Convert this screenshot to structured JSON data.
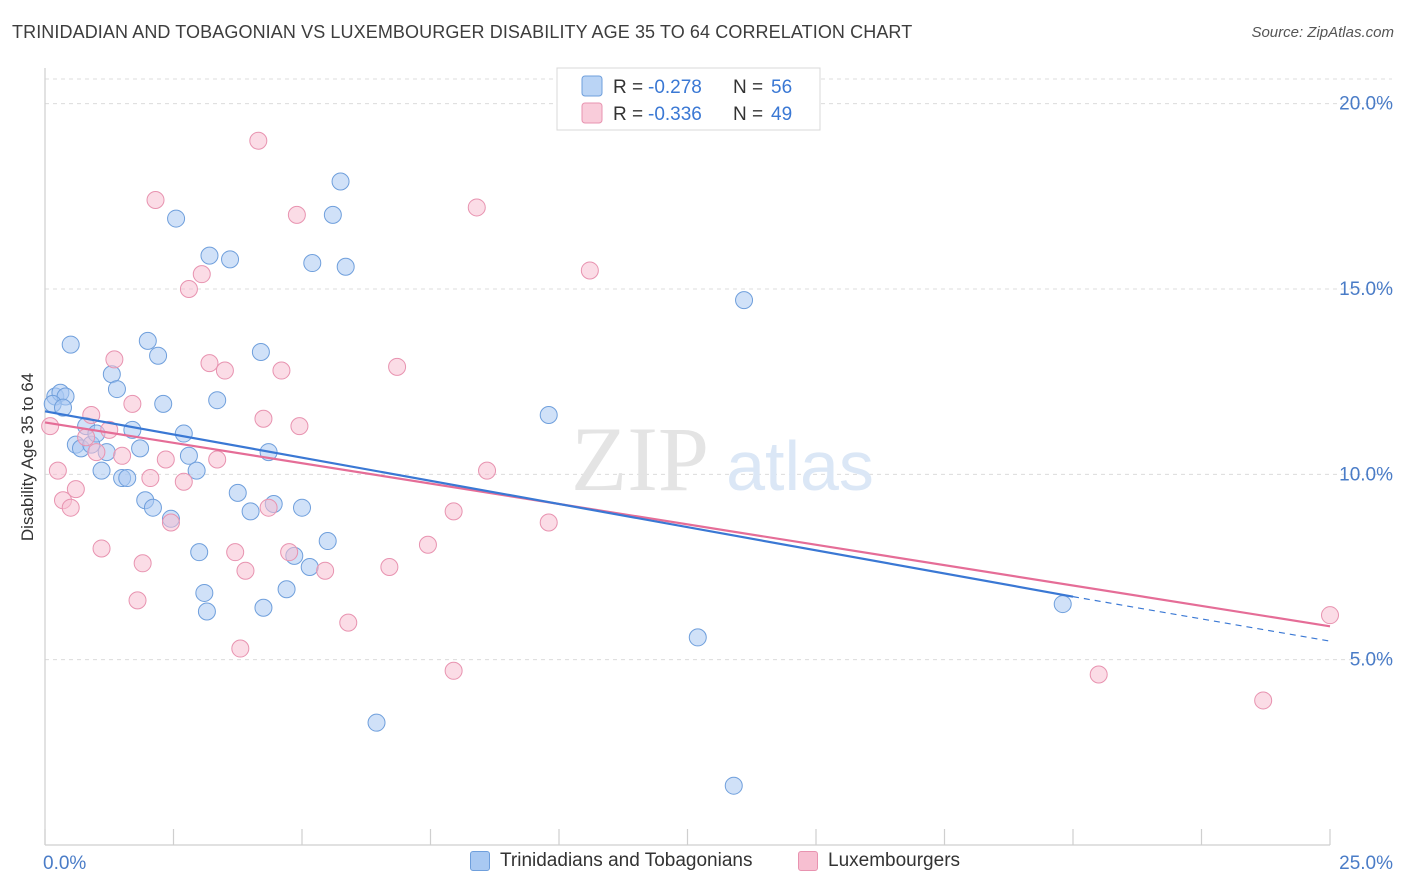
{
  "title": "TRINIDADIAN AND TOBAGONIAN VS LUXEMBOURGER DISABILITY AGE 35 TO 64 CORRELATION CHART",
  "source": "Source: ZipAtlas.com",
  "colors": {
    "blue_fill": "#a9c9f2",
    "blue_stroke": "#6f9fdc",
    "blue_line": "#3a78d4",
    "pink_fill": "#f7bfd1",
    "pink_stroke": "#e893b0",
    "pink_line": "#e56d97",
    "tick_label": "#4a7cc7"
  },
  "chart_data": {
    "type": "scatter",
    "ylabel": "Disability Age 35 to 64",
    "xlim": [
      0,
      25
    ],
    "ylim": [
      0,
      20.8
    ],
    "x_tick_labels": [
      {
        "value": 0,
        "label": "0.0%"
      },
      {
        "value": 25,
        "label": "25.0%"
      }
    ],
    "y_tick_labels": [
      {
        "value": 5,
        "label": "5.0%"
      },
      {
        "value": 10,
        "label": "10.0%"
      },
      {
        "value": 15,
        "label": "15.0%"
      },
      {
        "value": 20,
        "label": "20.0%"
      }
    ],
    "grid": true,
    "watermark": {
      "zip": "ZIP",
      "atlas": "atlas"
    },
    "legend": {
      "placement": "top-center",
      "entries": [
        {
          "r_label": "R =",
          "r_value": "-0.278",
          "n_label": "N =",
          "n_value": "56"
        },
        {
          "r_label": "R =",
          "r_value": "-0.336",
          "n_label": "N =",
          "n_value": "49"
        }
      ]
    },
    "series": [
      {
        "name": "Trinidadians and Tobagonians",
        "points": [
          [
            0.2,
            12.1
          ],
          [
            0.3,
            12.2
          ],
          [
            0.4,
            12.1
          ],
          [
            0.5,
            13.5
          ],
          [
            0.6,
            10.8
          ],
          [
            0.7,
            10.7
          ],
          [
            0.8,
            11.3
          ],
          [
            0.9,
            10.8
          ],
          [
            1.0,
            11.1
          ],
          [
            1.1,
            10.1
          ],
          [
            1.2,
            10.6
          ],
          [
            1.3,
            12.7
          ],
          [
            1.4,
            12.3
          ],
          [
            1.5,
            9.9
          ],
          [
            1.6,
            9.9
          ],
          [
            1.7,
            11.2
          ],
          [
            1.85,
            10.7
          ],
          [
            1.95,
            9.3
          ],
          [
            2.0,
            13.6
          ],
          [
            2.1,
            9.1
          ],
          [
            2.2,
            13.2
          ],
          [
            2.3,
            11.9
          ],
          [
            2.45,
            8.8
          ],
          [
            2.55,
            16.9
          ],
          [
            2.7,
            11.1
          ],
          [
            2.8,
            10.5
          ],
          [
            2.95,
            10.1
          ],
          [
            3.0,
            7.9
          ],
          [
            3.1,
            6.8
          ],
          [
            3.15,
            6.3
          ],
          [
            3.2,
            15.9
          ],
          [
            3.35,
            12.0
          ],
          [
            3.6,
            15.8
          ],
          [
            3.75,
            9.5
          ],
          [
            4.0,
            9.0
          ],
          [
            4.2,
            13.3
          ],
          [
            4.25,
            6.4
          ],
          [
            4.35,
            10.6
          ],
          [
            4.45,
            9.2
          ],
          [
            4.7,
            6.9
          ],
          [
            4.85,
            7.8
          ],
          [
            5.0,
            9.1
          ],
          [
            5.15,
            7.5
          ],
          [
            5.2,
            15.7
          ],
          [
            5.5,
            8.2
          ],
          [
            5.6,
            17.0
          ],
          [
            5.75,
            17.9
          ],
          [
            5.85,
            15.6
          ],
          [
            6.45,
            3.3
          ],
          [
            9.8,
            11.6
          ],
          [
            12.7,
            5.6
          ],
          [
            13.4,
            1.6
          ],
          [
            13.6,
            14.7
          ],
          [
            19.8,
            6.5
          ],
          [
            0.15,
            11.9
          ],
          [
            0.35,
            11.8
          ]
        ]
      },
      {
        "name": "Luxembourgers",
        "points": [
          [
            0.1,
            11.3
          ],
          [
            0.25,
            10.1
          ],
          [
            0.35,
            9.3
          ],
          [
            0.5,
            9.1
          ],
          [
            0.6,
            9.6
          ],
          [
            0.8,
            11.0
          ],
          [
            0.9,
            11.6
          ],
          [
            1.0,
            10.6
          ],
          [
            1.1,
            8.0
          ],
          [
            1.25,
            11.2
          ],
          [
            1.35,
            13.1
          ],
          [
            1.5,
            10.5
          ],
          [
            1.7,
            11.9
          ],
          [
            1.8,
            6.6
          ],
          [
            1.9,
            7.6
          ],
          [
            2.05,
            9.9
          ],
          [
            2.15,
            17.4
          ],
          [
            2.35,
            10.4
          ],
          [
            2.45,
            8.7
          ],
          [
            2.7,
            9.8
          ],
          [
            2.8,
            15.0
          ],
          [
            3.05,
            15.4
          ],
          [
            3.2,
            13.0
          ],
          [
            3.35,
            10.4
          ],
          [
            3.5,
            12.8
          ],
          [
            3.7,
            7.9
          ],
          [
            3.8,
            5.3
          ],
          [
            3.9,
            7.4
          ],
          [
            4.15,
            19.0
          ],
          [
            4.25,
            11.5
          ],
          [
            4.35,
            9.1
          ],
          [
            4.6,
            12.8
          ],
          [
            4.75,
            7.9
          ],
          [
            4.9,
            17.0
          ],
          [
            4.95,
            11.3
          ],
          [
            5.45,
            7.4
          ],
          [
            5.9,
            6.0
          ],
          [
            6.7,
            7.5
          ],
          [
            6.85,
            12.9
          ],
          [
            7.45,
            8.1
          ],
          [
            7.95,
            4.7
          ],
          [
            7.95,
            9.0
          ],
          [
            8.4,
            17.2
          ],
          [
            8.6,
            10.1
          ],
          [
            9.8,
            8.7
          ],
          [
            10.6,
            15.5
          ],
          [
            20.5,
            4.6
          ],
          [
            23.7,
            3.9
          ],
          [
            25.0,
            6.2
          ]
        ]
      }
    ],
    "trend_lines": [
      {
        "series": "Trinidadians and Tobagonians",
        "x0": 0,
        "y0": 11.7,
        "x1": 20.0,
        "y1": 6.7,
        "dashed_to_x": 25.0,
        "dashed_to_y": 5.5
      },
      {
        "series": "Luxembourgers",
        "x0": 0,
        "y0": 11.4,
        "x1": 25.0,
        "y1": 5.9
      }
    ]
  },
  "legend_bottom": [
    {
      "label": "Trinidadians and Tobagonians"
    },
    {
      "label": "Luxembourgers"
    }
  ]
}
